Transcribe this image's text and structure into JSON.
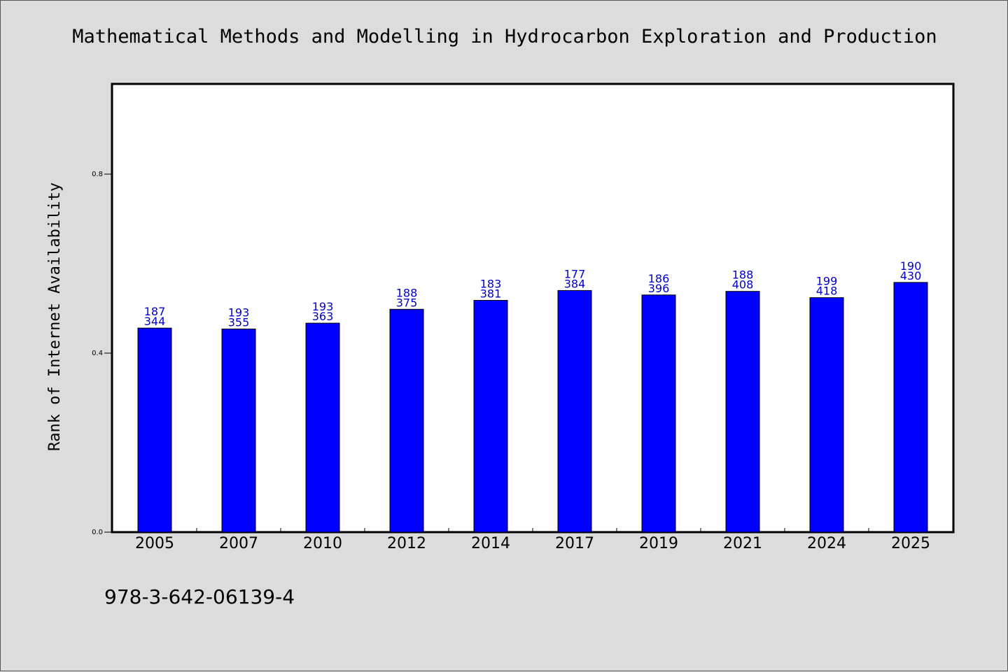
{
  "chart_data": {
    "type": "bar",
    "title": "Mathematical Methods and Modelling in Hydrocarbon Exploration and Production",
    "ylabel": "Rank of Internet Availability",
    "xlabel": "",
    "ylim": [
      0,
      1
    ],
    "yticks": [
      "0.0",
      "0.4",
      "0.8"
    ],
    "categories": [
      "2005",
      "2007",
      "2010",
      "2012",
      "2014",
      "2017",
      "2019",
      "2021",
      "2024",
      "2025"
    ],
    "values": [
      0.456,
      0.454,
      0.467,
      0.498,
      0.518,
      0.54,
      0.53,
      0.538,
      0.524,
      0.558
    ],
    "data_labels_top": [
      "187",
      "193",
      "193",
      "188",
      "183",
      "177",
      "186",
      "188",
      "199",
      "190"
    ],
    "data_labels_bottom": [
      "344",
      "355",
      "363",
      "375",
      "381",
      "384",
      "396",
      "408",
      "418",
      "430"
    ],
    "bar_color": "#0000ff",
    "label_color": "#0000cc",
    "grid": false,
    "legend": "none"
  },
  "footer": {
    "isbn": "978-3-642-06139-4"
  }
}
